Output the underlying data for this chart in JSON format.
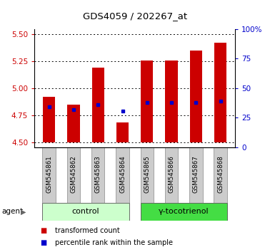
{
  "title": "GDS4059 / 202267_at",
  "samples": [
    "GSM545861",
    "GSM545862",
    "GSM545863",
    "GSM545864",
    "GSM545865",
    "GSM545866",
    "GSM545867",
    "GSM545868"
  ],
  "transformed_counts": [
    4.92,
    4.85,
    5.19,
    4.68,
    5.26,
    5.26,
    5.35,
    5.42
  ],
  "percentile_ranks": [
    4.83,
    4.8,
    4.85,
    4.79,
    4.87,
    4.87,
    4.87,
    4.88
  ],
  "bar_bottom": 4.5,
  "ylim_left": [
    4.45,
    5.55
  ],
  "ylim_right": [
    0,
    100
  ],
  "yticks_left": [
    4.5,
    4.75,
    5.0,
    5.25,
    5.5
  ],
  "yticks_right": [
    0,
    25,
    50,
    75,
    100
  ],
  "ytick_labels_right": [
    "0",
    "25",
    "50",
    "75",
    "100%"
  ],
  "groups": [
    {
      "label": "control",
      "indices": [
        0,
        1,
        2,
        3
      ],
      "color": "#ccffcc"
    },
    {
      "label": "γ-tocotrienol",
      "indices": [
        4,
        5,
        6,
        7
      ],
      "color": "#44dd44"
    }
  ],
  "bar_color": "#cc0000",
  "percentile_color": "#0000cc",
  "tick_color_left": "#cc0000",
  "tick_color_right": "#0000cc",
  "agent_label": "agent",
  "legend_items": [
    {
      "label": "transformed count",
      "color": "#cc0000"
    },
    {
      "label": "percentile rank within the sample",
      "color": "#0000cc"
    }
  ],
  "grid_color": "#000000",
  "sample_bg_color": "#cccccc",
  "bar_width": 0.5
}
